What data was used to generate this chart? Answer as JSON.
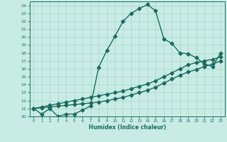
{
  "xlabel": "Humidex (Indice chaleur)",
  "ylabel": "",
  "bg_color": "#c8ece4",
  "grid_color": "#a8d4cc",
  "line_color": "#1a6b60",
  "xlim": [
    -0.5,
    23.5
  ],
  "ylim": [
    10,
    24.5
  ],
  "xticks": [
    0,
    1,
    2,
    3,
    4,
    5,
    6,
    7,
    8,
    9,
    10,
    11,
    12,
    13,
    14,
    15,
    16,
    17,
    18,
    19,
    20,
    21,
    22,
    23
  ],
  "yticks": [
    10,
    11,
    12,
    13,
    14,
    15,
    16,
    17,
    18,
    19,
    20,
    21,
    22,
    23,
    24
  ],
  "curve1_x": [
    0,
    1,
    2,
    3,
    4,
    5,
    6,
    7,
    8,
    9,
    10,
    11,
    12,
    13,
    14,
    15,
    16,
    17,
    18,
    19,
    20,
    21,
    22,
    23
  ],
  "curve1_y": [
    11,
    10.3,
    11,
    10.0,
    10.3,
    10.3,
    10.8,
    11.3,
    16.2,
    18.3,
    20.1,
    22.0,
    23.0,
    23.6,
    24.1,
    23.3,
    19.8,
    19.2,
    18.0,
    17.9,
    17.4,
    16.6,
    16.3,
    18.0
  ],
  "curve2_x": [
    0,
    1,
    2,
    3,
    4,
    5,
    6,
    7,
    8,
    9,
    10,
    11,
    12,
    13,
    14,
    15,
    16,
    17,
    18,
    19,
    20,
    21,
    22,
    23
  ],
  "curve2_y": [
    11.0,
    11.2,
    11.4,
    11.6,
    11.8,
    12.0,
    12.2,
    12.4,
    12.6,
    12.8,
    13.0,
    13.2,
    13.5,
    13.8,
    14.1,
    14.5,
    15.0,
    15.5,
    16.0,
    16.5,
    16.8,
    17.0,
    17.2,
    17.5
  ],
  "curve3_x": [
    0,
    1,
    2,
    3,
    4,
    5,
    6,
    7,
    8,
    9,
    10,
    11,
    12,
    13,
    14,
    15,
    16,
    17,
    18,
    19,
    20,
    21,
    22,
    23
  ],
  "curve3_y": [
    11.0,
    11.1,
    11.2,
    11.3,
    11.4,
    11.5,
    11.6,
    11.7,
    11.8,
    12.0,
    12.2,
    12.4,
    12.7,
    13.0,
    13.3,
    13.7,
    14.2,
    14.7,
    15.2,
    15.6,
    15.9,
    16.3,
    16.6,
    17.0
  ],
  "marker": "D",
  "markersize": 2.5,
  "linewidth": 1.0
}
